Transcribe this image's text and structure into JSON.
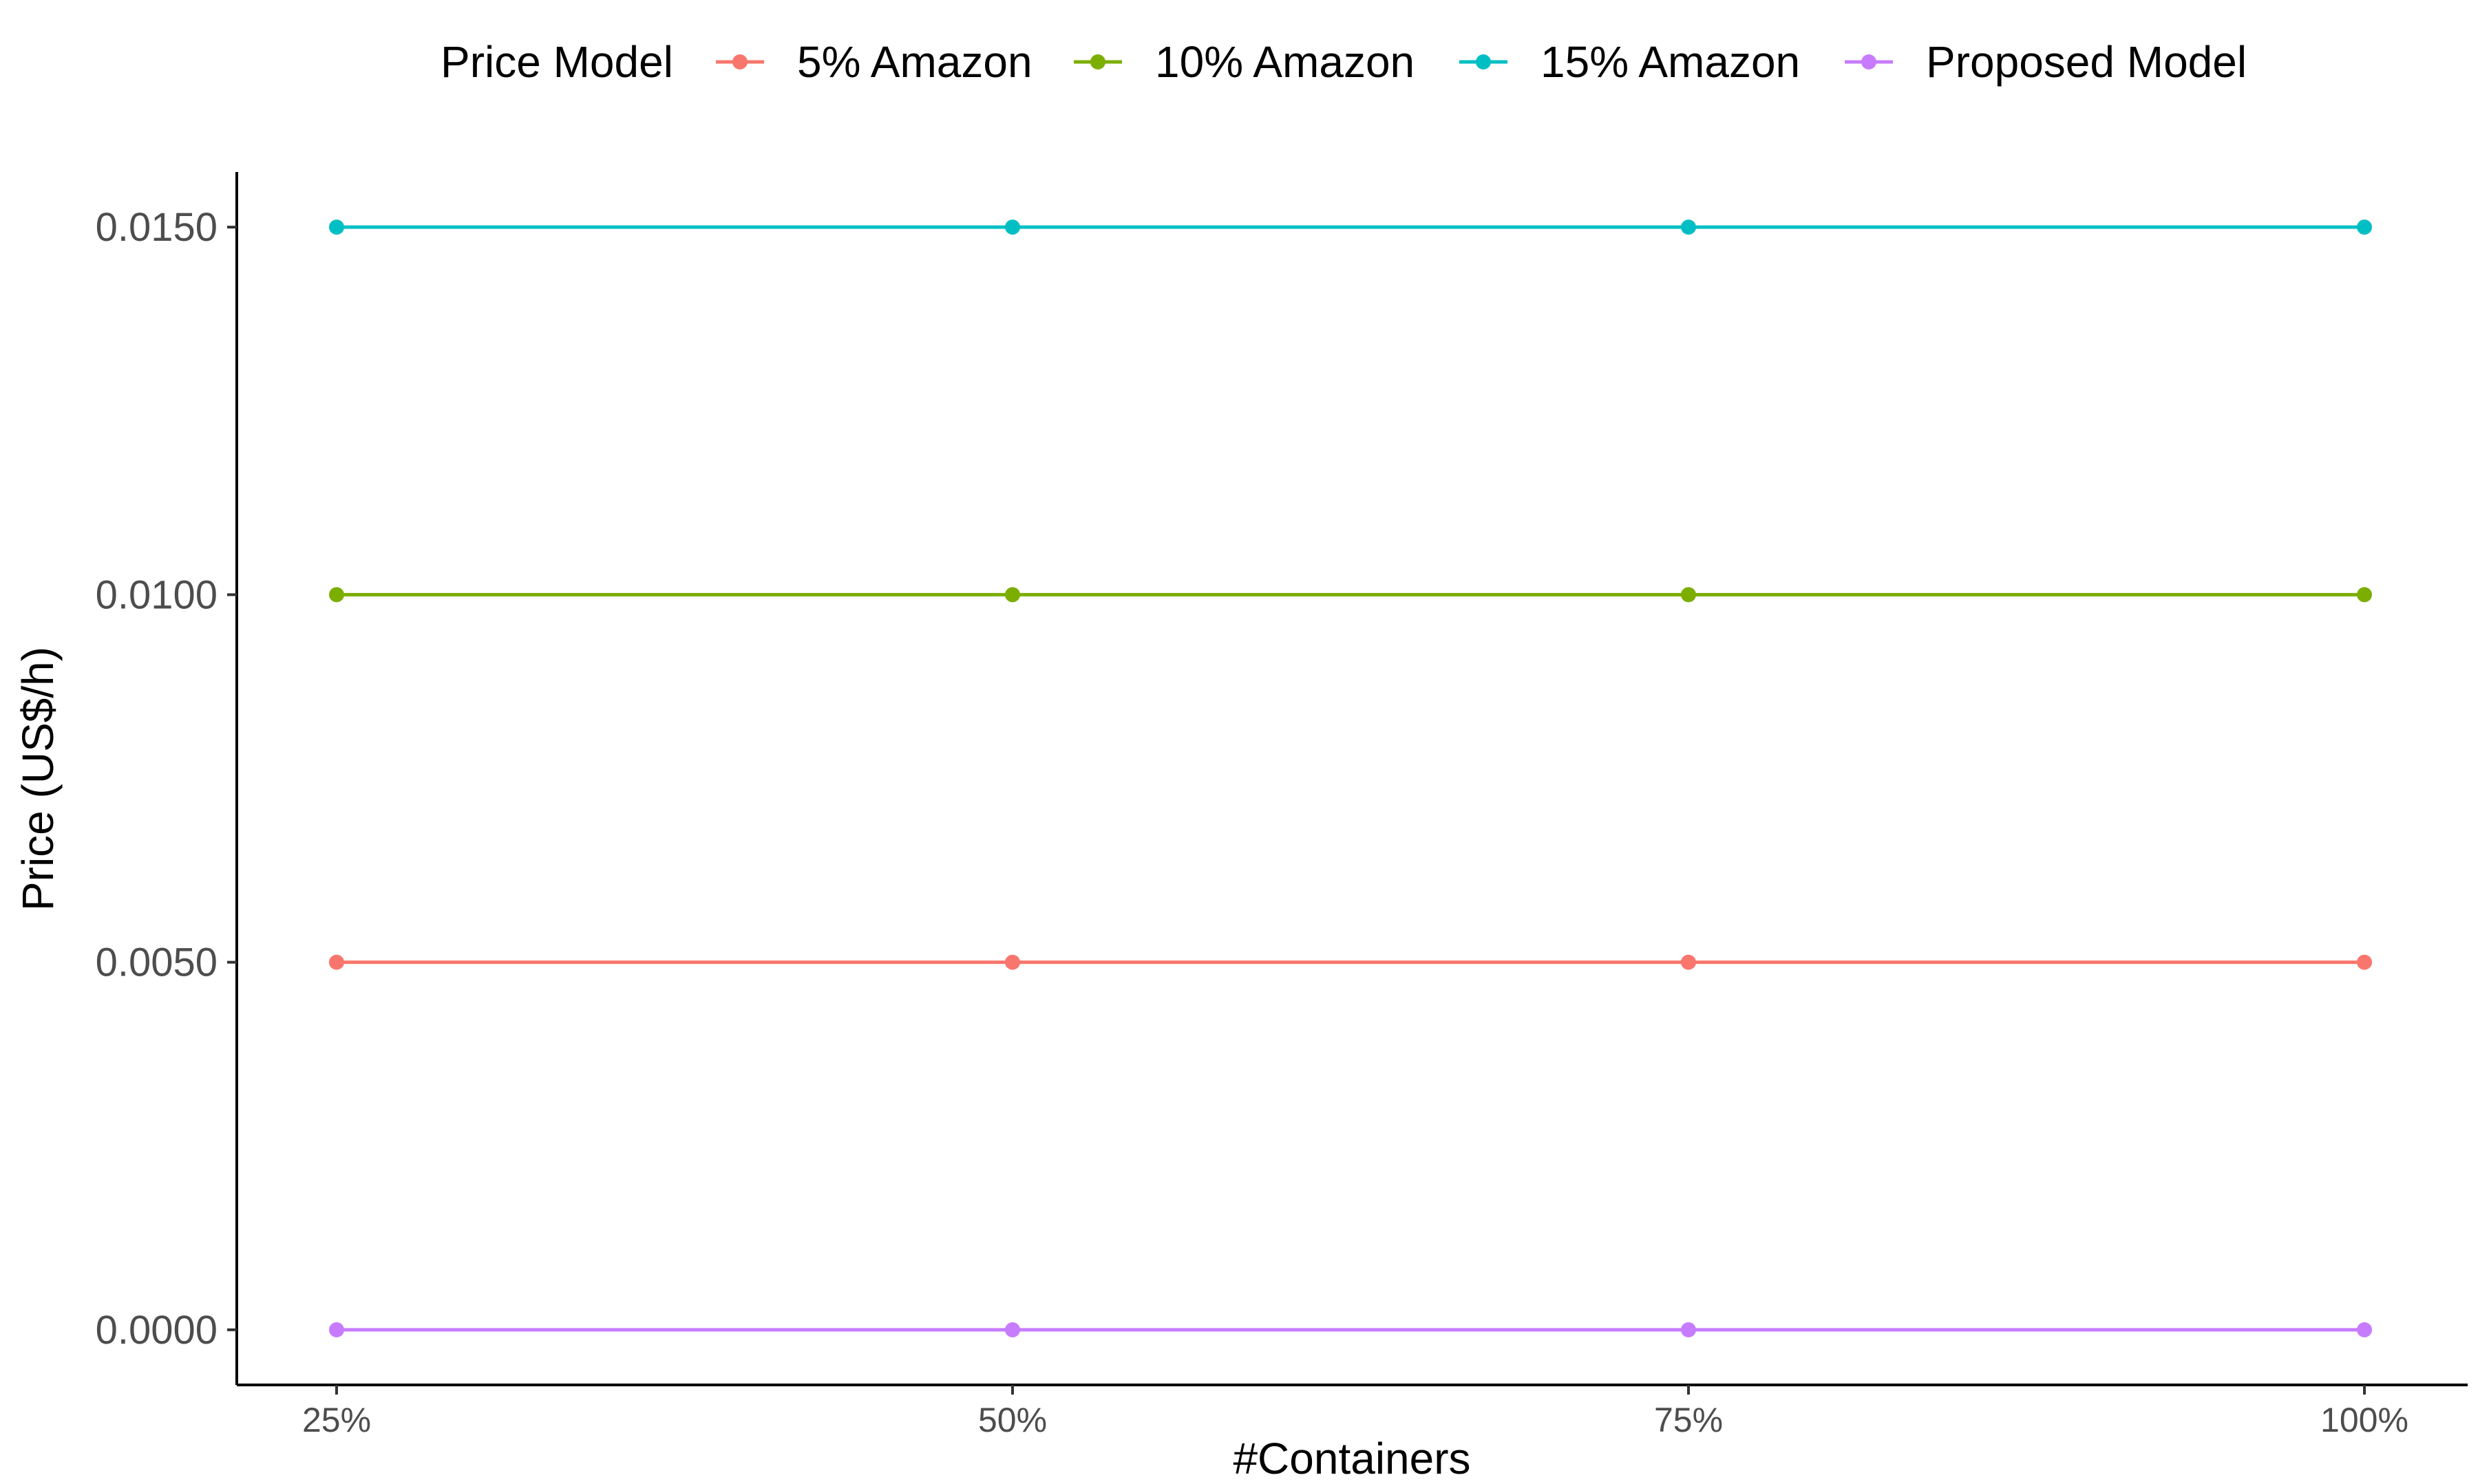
{
  "chart_data": {
    "type": "line",
    "title": "",
    "xlabel": "#Containers",
    "ylabel": "Price (US$/h)",
    "categories": [
      "25%",
      "50%",
      "75%",
      "100%"
    ],
    "y_ticks": [
      "0.0000",
      "0.0050",
      "0.0100",
      "0.0150"
    ],
    "ylim": [
      -0.00075,
      0.01575
    ],
    "grid": false,
    "legend": {
      "title": "Price Model",
      "position": "top"
    },
    "series": [
      {
        "name": "5% Amazon",
        "color": "#F8766D",
        "values": [
          0.005,
          0.005,
          0.005,
          0.005
        ]
      },
      {
        "name": "10% Amazon",
        "color": "#7CAE00",
        "values": [
          0.01,
          0.01,
          0.01,
          0.01
        ]
      },
      {
        "name": "15% Amazon",
        "color": "#00BFC4",
        "values": [
          0.015,
          0.015,
          0.015,
          0.015
        ]
      },
      {
        "name": "Proposed Model",
        "color": "#C77CFF",
        "values": [
          0.0,
          0.0,
          0.0,
          0.0
        ]
      }
    ]
  }
}
